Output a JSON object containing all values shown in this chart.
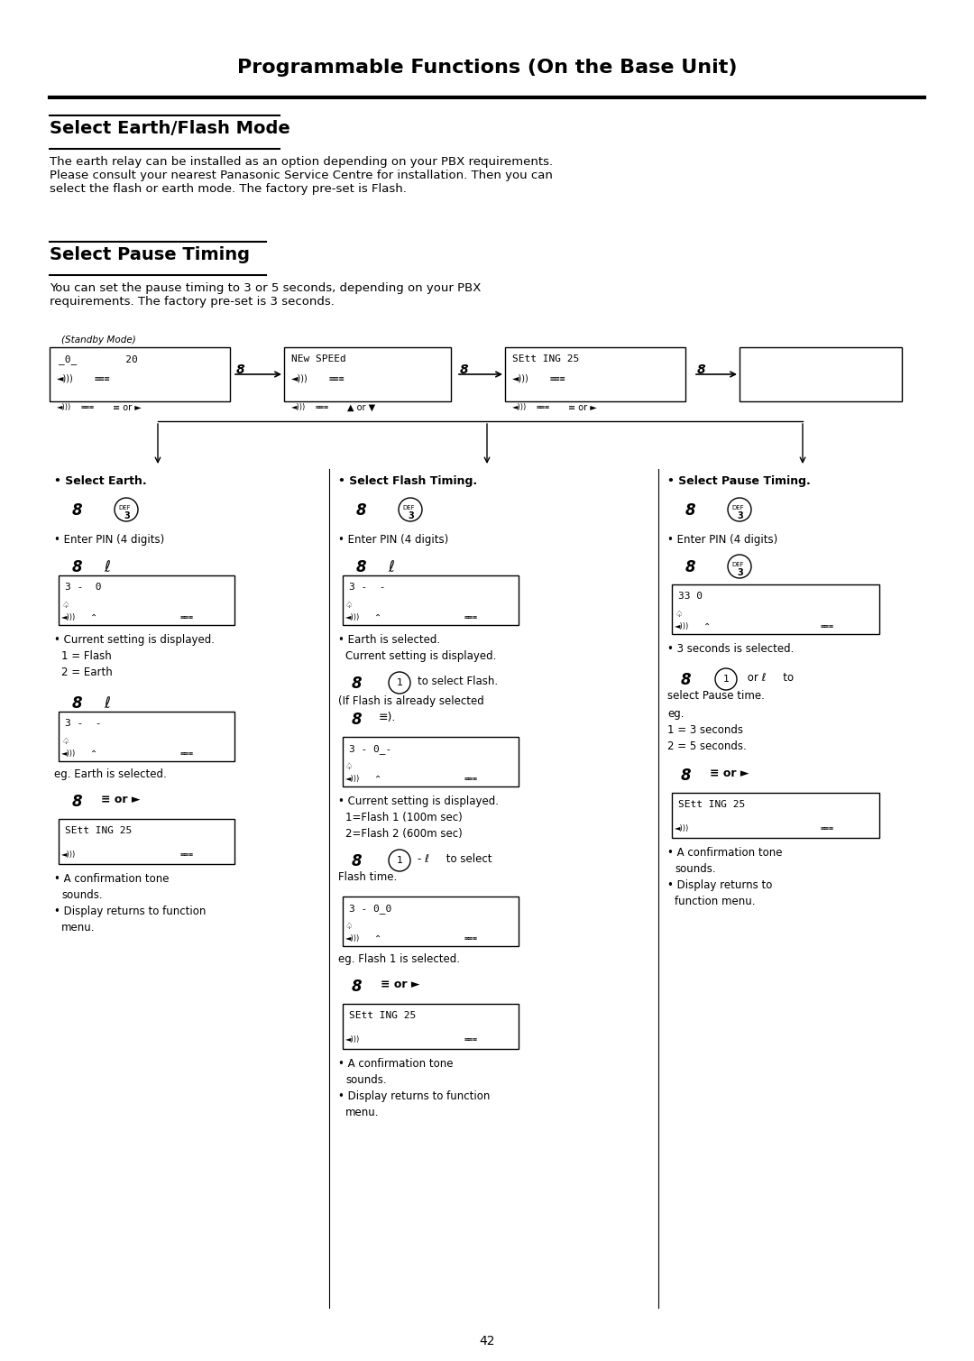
{
  "title": "Programmable Functions (On the Base Unit)",
  "section1_title": "Select Earth/Flash Mode",
  "section1_text": "The earth relay can be installed as an option depending on your PBX requirements.\nPlease consult your nearest Panasonic Service Centre for installation. Then you can\nselect the flash or earth mode. The factory pre-set is Flash.",
  "section2_title": "Select Pause Timing",
  "section2_text": "You can set the pause timing to 3 or 5 seconds, depending on your PBX\nrequirements. The factory pre-set is 3 seconds.",
  "standby_label": "(Standby Mode)",
  "col1_header": "• Select Earth.",
  "col2_header": "• Select Flash Timing.",
  "col3_header": "• Select Pause Timing.",
  "page_number": "42",
  "bg_color": "#ffffff",
  "text_color": "#000000"
}
